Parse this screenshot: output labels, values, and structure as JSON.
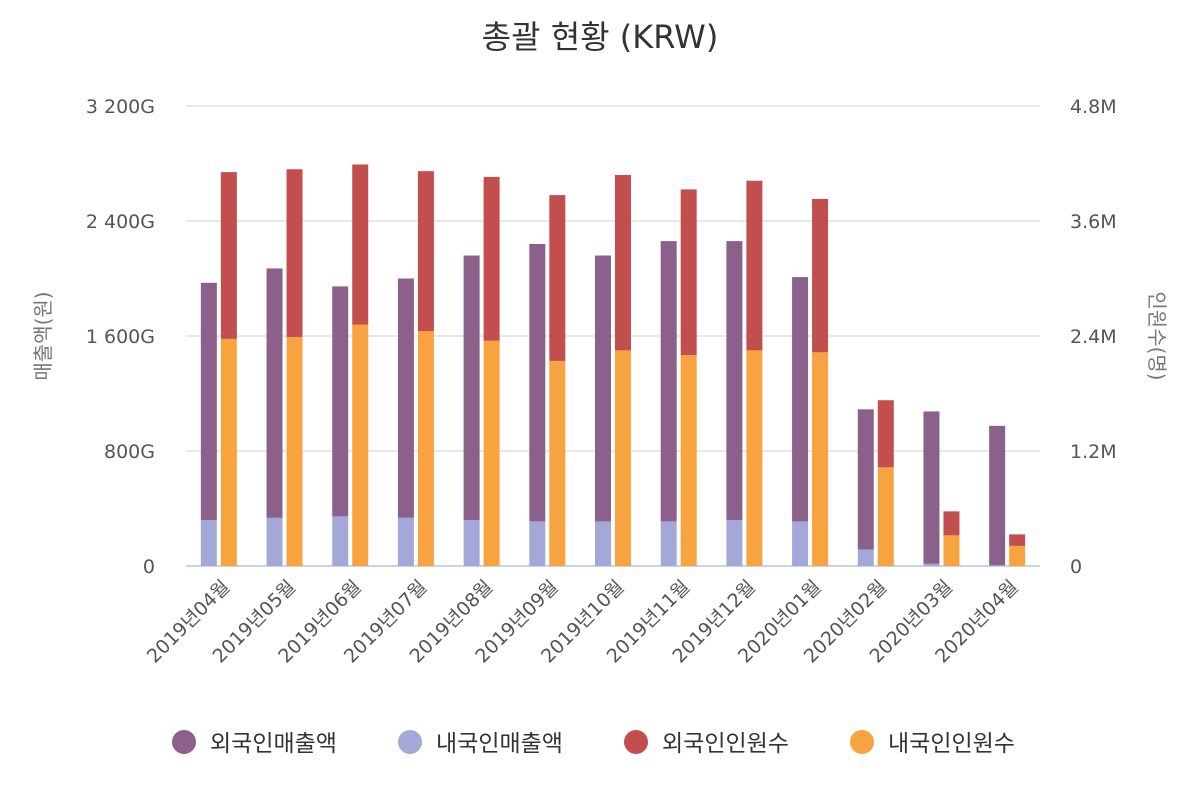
{
  "chart_data": {
    "type": "bar",
    "title": "총괄 현황 (KRW)",
    "categories": [
      "2019년04월",
      "2019년05월",
      "2019년06월",
      "2019년07월",
      "2019년08월",
      "2019년09월",
      "2019년10월",
      "2019년11월",
      "2019년12월",
      "2020년01월",
      "2020년02월",
      "2020년03월",
      "2020년04월"
    ],
    "stacks": [
      {
        "axis": "left",
        "series": [
          {
            "name": "내국인매출액",
            "color": "#a3a8d9",
            "values": [
              320,
              335,
              345,
              335,
              320,
              310,
              310,
              310,
              320,
              310,
              115,
              15,
              5
            ]
          },
          {
            "name": "외국인매출액",
            "color": "#8b618b",
            "values": [
              1650,
              1735,
              1600,
              1665,
              1840,
              1930,
              1850,
              1950,
              1940,
              1700,
              975,
              1060,
              970
            ]
          }
        ]
      },
      {
        "axis": "right",
        "series": [
          {
            "name": "내국인인원수",
            "color": "#f7a33f",
            "values": [
              2370,
              2390,
              2520,
              2450,
              2350,
              2140,
              2250,
              2200,
              2250,
              2230,
              1030,
              320,
              210
            ]
          },
          {
            "name": "외국인인원수",
            "color": "#c24e4e",
            "values": [
              1740,
              1750,
              1670,
              1670,
              1710,
              1730,
              1830,
              1730,
              1770,
              1600,
              700,
              250,
              120
            ]
          }
        ]
      }
    ],
    "y_left": {
      "label": "매출액(원)",
      "ylim": [
        0,
        3200
      ],
      "ticks": [
        0,
        800,
        1600,
        2400,
        3200
      ],
      "tick_labels": [
        "0",
        "800G",
        "1 600G",
        "2 400G",
        "3 200G"
      ]
    },
    "y_right": {
      "label": "인원수(명)",
      "ylim": [
        0,
        4800
      ],
      "ticks": [
        0,
        1200,
        2400,
        3600,
        4800
      ],
      "tick_labels": [
        "0",
        "1.2M",
        "2.4M",
        "3.6M",
        "4.8M"
      ]
    },
    "legend": {
      "position": "bottom",
      "items": [
        {
          "name": "외국인매출액",
          "color": "#8b618b"
        },
        {
          "name": "내국인매출액",
          "color": "#a3a8d9"
        },
        {
          "name": "외국인인원수",
          "color": "#c24e4e"
        },
        {
          "name": "내국인인원수",
          "color": "#f7a33f"
        }
      ]
    },
    "grid": true
  }
}
